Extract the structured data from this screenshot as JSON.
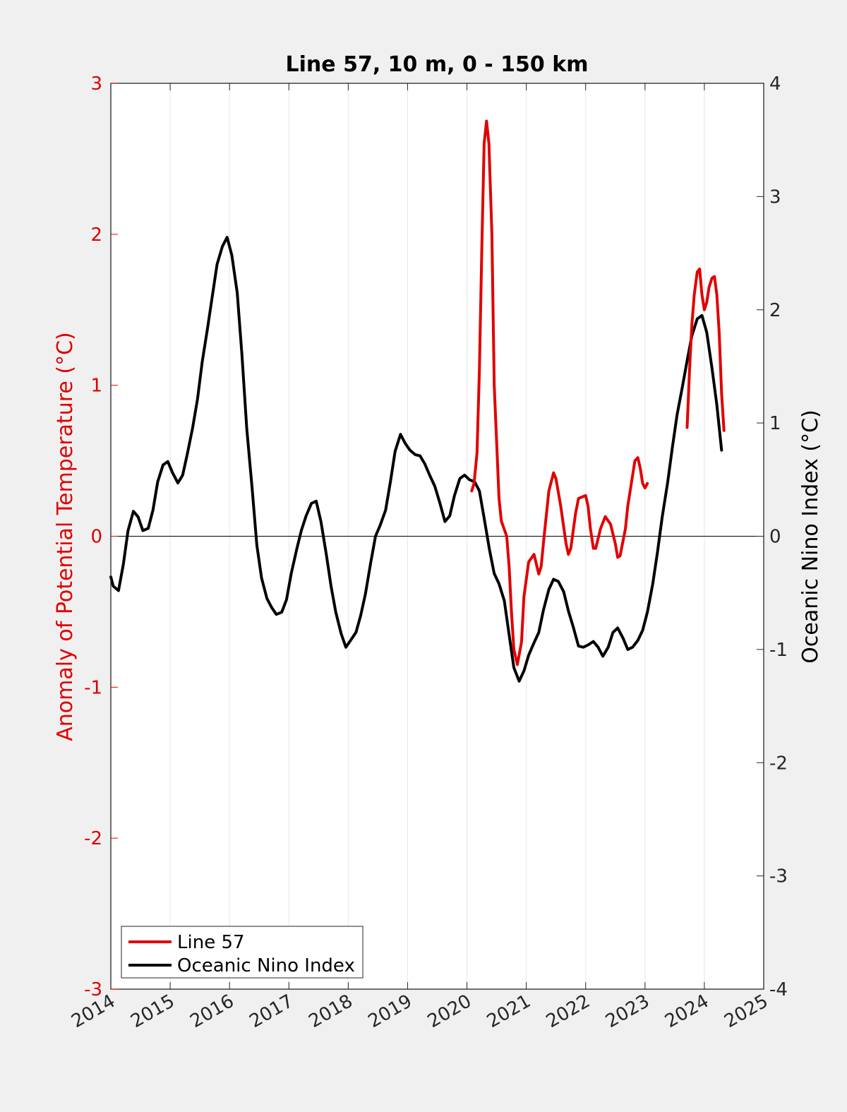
{
  "chart_data": {
    "type": "line",
    "title": "Line 57, 10 m, 0 - 150 km",
    "ylabel_left": "Anomaly of Potential Temperature (°C)",
    "ylabel_right": "Oceanic Nino Index (°C)",
    "xlim": [
      2014,
      2025
    ],
    "ylim_left": [
      -3,
      3
    ],
    "ylim_right": [
      -4,
      4
    ],
    "x_ticks": [
      "2014",
      "2015",
      "2016",
      "2017",
      "2018",
      "2019",
      "2020",
      "2021",
      "2022",
      "2023",
      "2024",
      "2025"
    ],
    "yleft_ticks": [
      "3",
      "2",
      "1",
      "0",
      "-1",
      "-2",
      "-3"
    ],
    "yright_ticks": [
      "4",
      "3",
      "2",
      "1",
      "0",
      "-1",
      "-2",
      "-3",
      "-4"
    ],
    "vertical_grid": true,
    "legend_position": "bottom-left",
    "colors": {
      "line57": "#e00000",
      "oni": "#000000",
      "left_axis": "#e00000",
      "background": "#f0f0f0"
    },
    "series": [
      {
        "name": "Line 57",
        "axis": "left",
        "segments": [
          [
            [
              2020.08,
              0.3
            ],
            [
              2020.12,
              0.35
            ],
            [
              2020.17,
              0.55
            ],
            [
              2020.21,
              1.1
            ],
            [
              2020.25,
              1.9
            ],
            [
              2020.29,
              2.6
            ],
            [
              2020.33,
              2.75
            ],
            [
              2020.37,
              2.6
            ],
            [
              2020.42,
              2.0
            ],
            [
              2020.46,
              1.0
            ],
            [
              2020.54,
              0.25
            ],
            [
              2020.58,
              0.1
            ],
            [
              2020.67,
              0.0
            ],
            [
              2020.71,
              -0.2
            ],
            [
              2020.75,
              -0.5
            ],
            [
              2020.79,
              -0.75
            ],
            [
              2020.85,
              -0.85
            ],
            [
              2020.92,
              -0.7
            ],
            [
              2020.96,
              -0.4
            ],
            [
              2021.04,
              -0.17
            ],
            [
              2021.13,
              -0.12
            ],
            [
              2021.21,
              -0.25
            ],
            [
              2021.25,
              -0.2
            ],
            [
              2021.3,
              0.0
            ],
            [
              2021.38,
              0.3
            ],
            [
              2021.46,
              0.42
            ],
            [
              2021.5,
              0.38
            ],
            [
              2021.58,
              0.2
            ],
            [
              2021.67,
              -0.05
            ],
            [
              2021.71,
              -0.12
            ],
            [
              2021.75,
              -0.08
            ],
            [
              2021.83,
              0.15
            ],
            [
              2021.88,
              0.25
            ],
            [
              2022.0,
              0.27
            ],
            [
              2022.04,
              0.2
            ],
            [
              2022.08,
              0.05
            ],
            [
              2022.13,
              -0.08
            ],
            [
              2022.17,
              -0.08
            ],
            [
              2022.25,
              0.05
            ],
            [
              2022.33,
              0.13
            ],
            [
              2022.42,
              0.08
            ],
            [
              2022.5,
              -0.05
            ],
            [
              2022.54,
              -0.14
            ],
            [
              2022.58,
              -0.13
            ],
            [
              2022.67,
              0.05
            ],
            [
              2022.71,
              0.2
            ],
            [
              2022.75,
              0.3
            ],
            [
              2022.83,
              0.5
            ],
            [
              2022.88,
              0.52
            ],
            [
              2022.92,
              0.45
            ],
            [
              2022.96,
              0.35
            ],
            [
              2023.0,
              0.32
            ],
            [
              2023.04,
              0.35
            ]
          ],
          [
            [
              2023.71,
              0.72
            ],
            [
              2023.75,
              1.1
            ],
            [
              2023.79,
              1.4
            ],
            [
              2023.83,
              1.6
            ],
            [
              2023.88,
              1.75
            ],
            [
              2023.92,
              1.77
            ],
            [
              2023.96,
              1.6
            ],
            [
              2024.0,
              1.5
            ],
            [
              2024.04,
              1.55
            ],
            [
              2024.08,
              1.65
            ],
            [
              2024.13,
              1.71
            ],
            [
              2024.17,
              1.72
            ],
            [
              2024.21,
              1.6
            ],
            [
              2024.25,
              1.35
            ],
            [
              2024.29,
              0.95
            ],
            [
              2024.33,
              0.7
            ]
          ]
        ]
      },
      {
        "name": "Oceanic Nino Index",
        "axis": "right",
        "segments": [
          [
            [
              2014.0,
              -0.36
            ],
            [
              2014.04,
              -0.44
            ],
            [
              2014.13,
              -0.48
            ],
            [
              2014.21,
              -0.25
            ],
            [
              2014.29,
              0.05
            ],
            [
              2014.38,
              0.22
            ],
            [
              2014.46,
              0.17
            ],
            [
              2014.54,
              0.05
            ],
            [
              2014.63,
              0.07
            ],
            [
              2014.71,
              0.23
            ],
            [
              2014.79,
              0.48
            ],
            [
              2014.88,
              0.63
            ],
            [
              2014.96,
              0.66
            ],
            [
              2015.04,
              0.56
            ],
            [
              2015.13,
              0.47
            ],
            [
              2015.21,
              0.54
            ],
            [
              2015.29,
              0.73
            ],
            [
              2015.38,
              0.96
            ],
            [
              2015.46,
              1.21
            ],
            [
              2015.54,
              1.54
            ],
            [
              2015.63,
              1.84
            ],
            [
              2015.71,
              2.12
            ],
            [
              2015.79,
              2.4
            ],
            [
              2015.88,
              2.56
            ],
            [
              2015.96,
              2.64
            ],
            [
              2016.04,
              2.48
            ],
            [
              2016.13,
              2.15
            ],
            [
              2016.21,
              1.6
            ],
            [
              2016.29,
              0.95
            ],
            [
              2016.38,
              0.43
            ],
            [
              2016.46,
              -0.08
            ],
            [
              2016.54,
              -0.37
            ],
            [
              2016.63,
              -0.55
            ],
            [
              2016.71,
              -0.63
            ],
            [
              2016.79,
              -0.69
            ],
            [
              2016.88,
              -0.67
            ],
            [
              2016.96,
              -0.56
            ],
            [
              2017.04,
              -0.33
            ],
            [
              2017.13,
              -0.12
            ],
            [
              2017.21,
              0.05
            ],
            [
              2017.29,
              0.18
            ],
            [
              2017.38,
              0.29
            ],
            [
              2017.46,
              0.31
            ],
            [
              2017.54,
              0.13
            ],
            [
              2017.63,
              -0.16
            ],
            [
              2017.71,
              -0.44
            ],
            [
              2017.79,
              -0.67
            ],
            [
              2017.88,
              -0.86
            ],
            [
              2017.96,
              -0.98
            ],
            [
              2018.04,
              -0.92
            ],
            [
              2018.13,
              -0.85
            ],
            [
              2018.21,
              -0.7
            ],
            [
              2018.29,
              -0.51
            ],
            [
              2018.38,
              -0.23
            ],
            [
              2018.46,
              0.0
            ],
            [
              2018.54,
              0.1
            ],
            [
              2018.63,
              0.23
            ],
            [
              2018.71,
              0.48
            ],
            [
              2018.79,
              0.75
            ],
            [
              2018.88,
              0.9
            ],
            [
              2018.96,
              0.82
            ],
            [
              2019.04,
              0.76
            ],
            [
              2019.13,
              0.72
            ],
            [
              2019.21,
              0.71
            ],
            [
              2019.29,
              0.64
            ],
            [
              2019.38,
              0.53
            ],
            [
              2019.46,
              0.44
            ],
            [
              2019.54,
              0.3
            ],
            [
              2019.63,
              0.13
            ],
            [
              2019.71,
              0.18
            ],
            [
              2019.79,
              0.36
            ],
            [
              2019.88,
              0.51
            ],
            [
              2019.96,
              0.54
            ],
            [
              2020.04,
              0.5
            ],
            [
              2020.13,
              0.48
            ],
            [
              2020.21,
              0.4
            ],
            [
              2020.29,
              0.16
            ],
            [
              2020.38,
              -0.12
            ],
            [
              2020.46,
              -0.33
            ],
            [
              2020.54,
              -0.42
            ],
            [
              2020.63,
              -0.57
            ],
            [
              2020.71,
              -0.87
            ],
            [
              2020.79,
              -1.16
            ],
            [
              2020.88,
              -1.28
            ],
            [
              2020.96,
              -1.19
            ],
            [
              2021.04,
              -1.05
            ],
            [
              2021.13,
              -0.94
            ],
            [
              2021.21,
              -0.85
            ],
            [
              2021.29,
              -0.65
            ],
            [
              2021.38,
              -0.47
            ],
            [
              2021.46,
              -0.38
            ],
            [
              2021.54,
              -0.4
            ],
            [
              2021.63,
              -0.49
            ],
            [
              2021.71,
              -0.66
            ],
            [
              2021.79,
              -0.8
            ],
            [
              2021.88,
              -0.97
            ],
            [
              2021.96,
              -0.98
            ],
            [
              2022.04,
              -0.96
            ],
            [
              2022.13,
              -0.93
            ],
            [
              2022.21,
              -0.98
            ],
            [
              2022.29,
              -1.06
            ],
            [
              2022.38,
              -0.98
            ],
            [
              2022.46,
              -0.85
            ],
            [
              2022.54,
              -0.81
            ],
            [
              2022.63,
              -0.9
            ],
            [
              2022.71,
              -1.0
            ],
            [
              2022.79,
              -0.98
            ],
            [
              2022.88,
              -0.92
            ],
            [
              2022.96,
              -0.83
            ],
            [
              2023.04,
              -0.67
            ],
            [
              2023.13,
              -0.42
            ],
            [
              2023.21,
              -0.14
            ],
            [
              2023.29,
              0.17
            ],
            [
              2023.38,
              0.47
            ],
            [
              2023.46,
              0.78
            ],
            [
              2023.54,
              1.07
            ],
            [
              2023.63,
              1.32
            ],
            [
              2023.71,
              1.55
            ],
            [
              2023.79,
              1.77
            ],
            [
              2023.88,
              1.92
            ],
            [
              2023.96,
              1.95
            ],
            [
              2024.04,
              1.8
            ],
            [
              2024.13,
              1.48
            ],
            [
              2024.21,
              1.16
            ],
            [
              2024.29,
              0.76
            ]
          ]
        ]
      }
    ]
  }
}
